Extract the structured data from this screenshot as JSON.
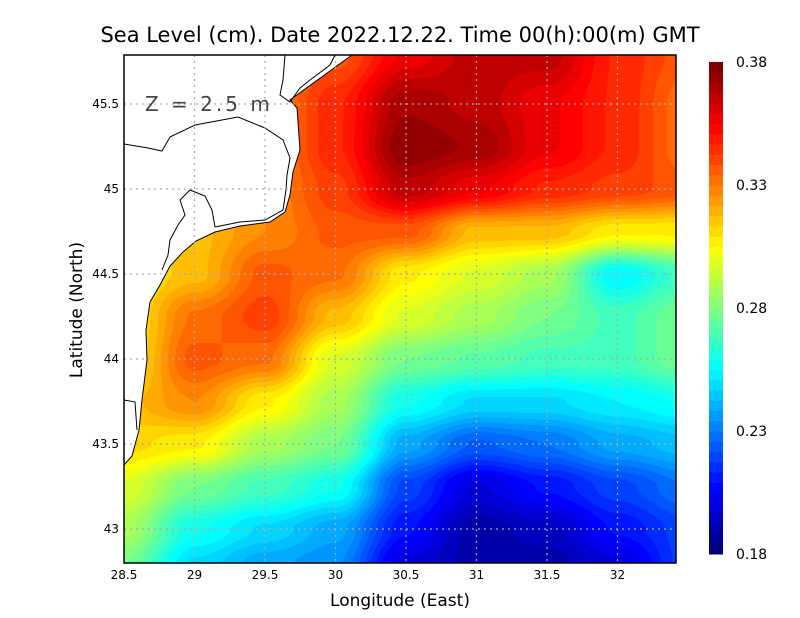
{
  "chart_data": {
    "type": "heatmap",
    "title": "Sea Level (cm). Date 2022.12.22. Time 00(h):00(m) GMT",
    "annotation": "Z = 2.5 m",
    "xlabel": "Longitude (East)",
    "ylabel": "Latitude (North)",
    "xlim": [
      28.5,
      32.4
    ],
    "ylim": [
      42.8,
      45.8
    ],
    "xticks": [
      "28.5",
      "29",
      "29.5",
      "30",
      "30.5",
      "31",
      "31.5",
      "32"
    ],
    "yticks": [
      "43",
      "43.5",
      "44",
      "44.5",
      "45",
      "45.5"
    ],
    "grid": true,
    "colorbar": {
      "min": 0.18,
      "max": 0.38,
      "ticks": [
        "0.18",
        "0.23",
        "0.28",
        "0.33",
        "0.38"
      ],
      "colormap": "jet"
    },
    "lon": [
      28.5,
      29,
      29.5,
      30,
      30.5,
      31,
      31.5,
      32,
      32.5
    ],
    "lat": [
      45.8,
      45.5,
      45.25,
      45.0,
      44.75,
      44.5,
      44.25,
      44.0,
      43.75,
      43.5,
      43.25,
      43.0,
      42.8
    ],
    "values": [
      [
        0.33,
        0.33,
        0.33,
        0.34,
        0.36,
        0.37,
        0.37,
        0.35,
        0.34
      ],
      [
        0.33,
        0.33,
        0.33,
        0.35,
        0.375,
        0.37,
        0.36,
        0.35,
        0.335
      ],
      [
        0.33,
        0.33,
        0.33,
        0.35,
        0.38,
        0.375,
        0.36,
        0.35,
        0.335
      ],
      [
        0.33,
        0.33,
        0.33,
        0.345,
        0.37,
        0.36,
        0.35,
        0.345,
        0.34
      ],
      [
        0.32,
        0.32,
        0.33,
        0.34,
        0.34,
        0.32,
        0.32,
        0.31,
        0.31
      ],
      [
        0.31,
        0.32,
        0.34,
        0.335,
        0.31,
        0.3,
        0.29,
        0.255,
        0.27
      ],
      [
        0.31,
        0.335,
        0.345,
        0.32,
        0.3,
        0.29,
        0.28,
        0.27,
        0.28
      ],
      [
        0.31,
        0.34,
        0.335,
        0.3,
        0.28,
        0.275,
        0.27,
        0.27,
        0.28
      ],
      [
        0.32,
        0.33,
        0.31,
        0.29,
        0.26,
        0.25,
        0.25,
        0.255,
        0.26
      ],
      [
        0.315,
        0.31,
        0.29,
        0.28,
        0.24,
        0.225,
        0.23,
        0.24,
        0.245
      ],
      [
        0.3,
        0.28,
        0.27,
        0.26,
        0.22,
        0.2,
        0.21,
        0.22,
        0.23
      ],
      [
        0.29,
        0.26,
        0.25,
        0.24,
        0.21,
        0.19,
        0.195,
        0.21,
        0.22
      ],
      [
        0.28,
        0.25,
        0.24,
        0.235,
        0.2,
        0.19,
        0.19,
        0.2,
        0.22
      ]
    ]
  }
}
